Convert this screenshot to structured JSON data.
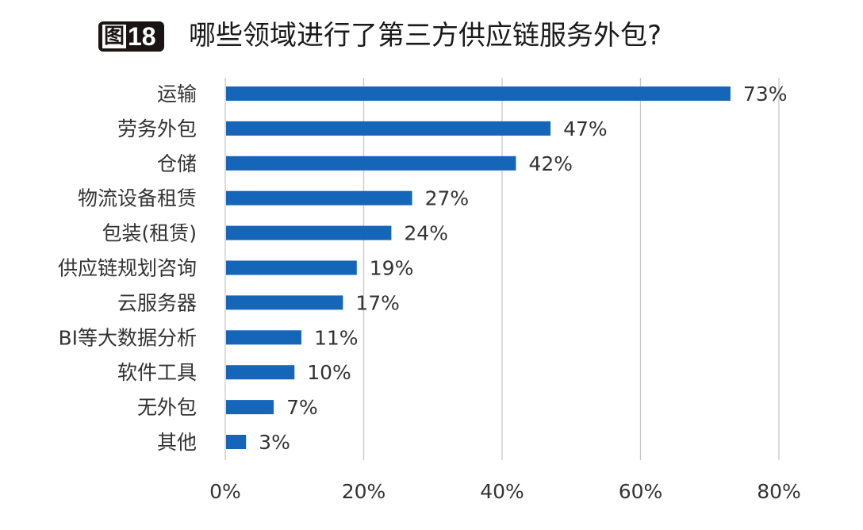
{
  "badge": {
    "fig": "图",
    "num": "18"
  },
  "chart_data": {
    "type": "bar",
    "orientation": "horizontal",
    "title": "哪些领域进行了第三方供应链服务外包?",
    "categories": [
      "运输",
      "劳务外包",
      "仓储",
      "物流设备租赁",
      "包装(租赁)",
      "供应链规划咨询",
      "云服务器",
      "BI等大数据分析",
      "软件工具",
      "无外包",
      "其他"
    ],
    "values": [
      73,
      47,
      42,
      27,
      24,
      19,
      17,
      11,
      10,
      7,
      3
    ],
    "value_labels": [
      "73%",
      "47%",
      "42%",
      "27%",
      "24%",
      "19%",
      "17%",
      "11%",
      "10%",
      "7%",
      "3%"
    ],
    "xlim": [
      0,
      80
    ],
    "xticks": [
      "0%",
      "20%",
      "40%",
      "60%",
      "80%"
    ],
    "grid": "vertical",
    "bar_color": "#1565b8",
    "xlabel": "",
    "ylabel": ""
  }
}
